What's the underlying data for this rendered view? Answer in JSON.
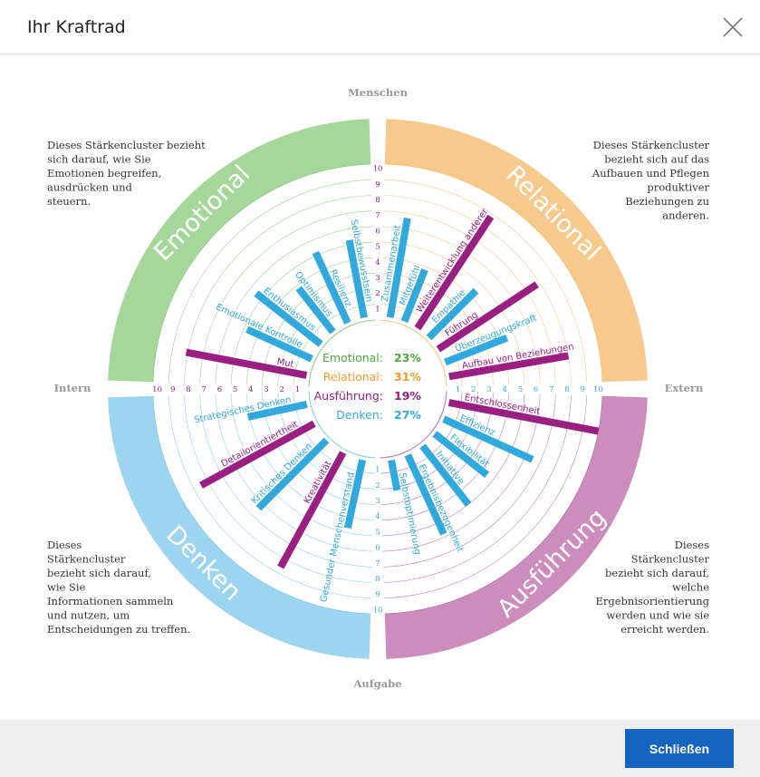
{
  "dialog": {
    "title": "Ihr Kraftrad",
    "close_button_label": "Schließen"
  },
  "axes": {
    "top": "Menschen",
    "bottom": "Aufgabe",
    "left": "Intern",
    "right": "Extern"
  },
  "ring_ticks": [
    "1",
    "2",
    "3",
    "4",
    "5",
    "6",
    "7",
    "8",
    "9",
    "10"
  ],
  "clusters": [
    {
      "name": "Emotional",
      "color": "#a6d79a",
      "dark": "#4ea83c",
      "description": "Dieses Stärkencluster bezieht sich darauf, wie Sie Emotionen begreifen, ausdrücken und steuern.",
      "lines": [
        "Dieses Stärkencluster bezieht",
        "sich darauf, wie Sie",
        "Emotionen begreifen,",
        "ausdrücken und",
        "steuern."
      ]
    },
    {
      "name": "Relational",
      "color": "#f7c98d",
      "dark": "#f29b2a",
      "description": "Dieses Stärkencluster bezieht sich auf das Aufbauen und Pflegen produktiver Beziehungen zu anderen.",
      "lines": [
        "Dieses Stärkencluster",
        "bezieht sich auf das",
        "Aufbauen und Pflegen",
        "produktiver",
        "Beziehungen zu",
        "anderen."
      ]
    },
    {
      "name": "Ausführung",
      "color": "#cc8dbd",
      "dark": "#8e1f7e",
      "description": "Dieses Stärkencluster bezieht sich darauf, welche Ergebnisorientierung werden und wie sie erreicht werden.",
      "lines": [
        "Dieses",
        "Stärkencluster",
        "bezieht sich darauf,",
        "welche",
        "Ergebnisorientierung",
        "werden und wie sie",
        "erreicht werden."
      ]
    },
    {
      "name": "Denken",
      "color": "#9dd4ef",
      "dark": "#31a9dc",
      "description": "Dieses Stärkencluster bezieht sich darauf, wie Sie Informationen sammeln und nutzen, um Entscheidungen zu treffen.",
      "lines": [
        "Dieses",
        "Stärkencluster",
        "bezieht sich darauf,",
        "wie Sie",
        "Informationen sammeln",
        "und nutzen, um",
        "Entscheidungen zu treffen."
      ]
    }
  ],
  "summary": [
    {
      "label": "Emotional:",
      "value": "23%",
      "color": "#4ea83c"
    },
    {
      "label": "Relational:",
      "value": "31%",
      "color": "#f29b2a"
    },
    {
      "label": "Ausführung:",
      "value": "19%",
      "color": "#8e1f7e"
    },
    {
      "label": "Denken:",
      "value": "27%",
      "color": "#31a9dc"
    }
  ],
  "chart_data": {
    "type": "radial-bar",
    "scale": [
      0,
      10
    ],
    "strengths": [
      {
        "name": "Mut",
        "cluster": "Emotional",
        "value": 8.1,
        "highlight": true
      },
      {
        "name": "Emotionale Kontrolle",
        "cluster": "Emotional",
        "value": 4.8
      },
      {
        "name": "Enthusiasmus",
        "cluster": "Emotional",
        "value": 5.5
      },
      {
        "name": "Optimismus",
        "cluster": "Emotional",
        "value": 3.8
      },
      {
        "name": "Resilienz",
        "cluster": "Emotional",
        "value": 5.2
      },
      {
        "name": "Selbstbewusstsein",
        "cluster": "Emotional",
        "value": 5.3
      },
      {
        "name": "Zusammenarbeit",
        "cluster": "Relational",
        "value": 6.7
      },
      {
        "name": "Mitgefühl",
        "cluster": "Relational",
        "value": 3.8
      },
      {
        "name": "Weiterentwicklung anderer",
        "cluster": "Relational",
        "value": 8.8,
        "highlight": true
      },
      {
        "name": "Empathie",
        "cluster": "Relational",
        "value": 4.5
      },
      {
        "name": "Führung",
        "cluster": "Relational",
        "value": 7.8,
        "highlight": true
      },
      {
        "name": "Überzeugungskraft",
        "cluster": "Relational",
        "value": 4.5
      },
      {
        "name": "Aufbau von Beziehungen",
        "cluster": "Relational",
        "value": 8.0,
        "highlight": true
      },
      {
        "name": "Entschlossenheit",
        "cluster": "Ausführung",
        "value": 10.0,
        "highlight": true
      },
      {
        "name": "Effizienz",
        "cluster": "Ausführung",
        "value": 6.5
      },
      {
        "name": "Flexibilität",
        "cluster": "Ausführung",
        "value": 4.5
      },
      {
        "name": "Initiative",
        "cluster": "Ausführung",
        "value": 5.0
      },
      {
        "name": "Ergebnisbezogenheit",
        "cluster": "Ausführung",
        "value": 5.8
      },
      {
        "name": "Selbstoptimierung",
        "cluster": "Ausführung",
        "value": 2.2
      },
      {
        "name": "Gesunder Menschenverstand",
        "cluster": "Denken",
        "value": 4.7
      },
      {
        "name": "Kreativität",
        "cluster": "Denken",
        "value": 8.6,
        "highlight": true
      },
      {
        "name": "Kritisches Denken",
        "cluster": "Denken",
        "value": 6.4
      },
      {
        "name": "Detailorientiertheit",
        "cluster": "Denken",
        "value": 8.5,
        "highlight": true
      },
      {
        "name": "Strategisches Denken",
        "cluster": "Denken",
        "value": 4.1
      }
    ]
  }
}
